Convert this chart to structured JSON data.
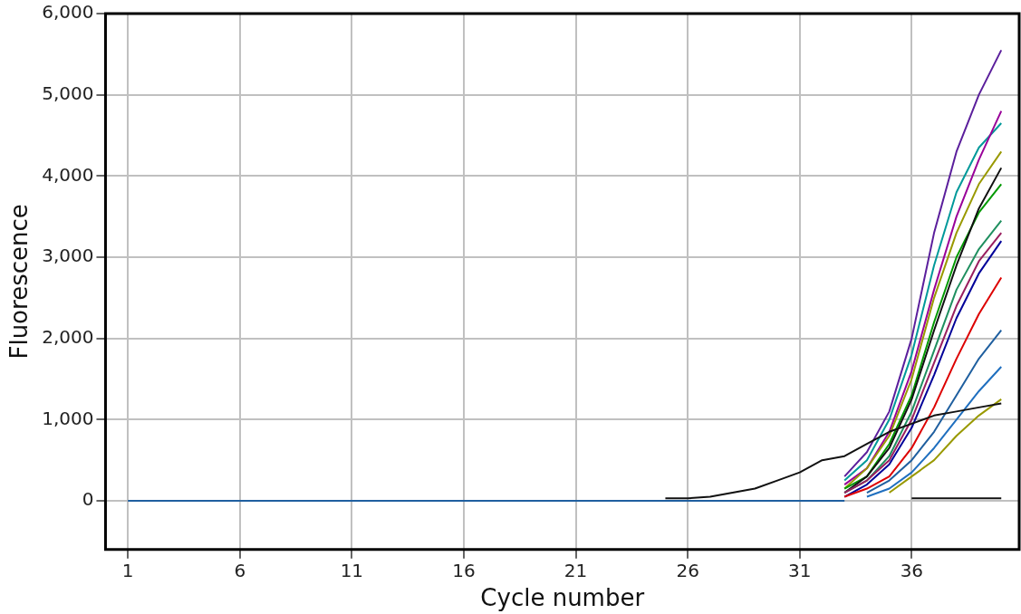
{
  "chart_data": {
    "type": "line",
    "xlabel": "Cycle number",
    "ylabel": "Fluorescence",
    "x": [
      33,
      34,
      35,
      36,
      37,
      38,
      39,
      40
    ],
    "xlim": [
      0,
      40.8
    ],
    "xticks": [
      1,
      6,
      11,
      16,
      21,
      26,
      31,
      36
    ],
    "ylim": [
      -600,
      6000
    ],
    "yticks": [
      {
        "value": 0,
        "label": "0"
      },
      {
        "value": 1000,
        "label": "1,000"
      },
      {
        "value": 2000,
        "label": "2,000"
      },
      {
        "value": 3000,
        "label": "3,000"
      },
      {
        "value": 4000,
        "label": "4,000"
      },
      {
        "value": 5000,
        "label": "5,000"
      },
      {
        "value": 6000,
        "label": "6,000"
      }
    ],
    "grid": true,
    "legend": false,
    "marker": "none",
    "line_style": "solid",
    "series": [
      {
        "color": "#1f5fa0",
        "x": [
          1,
          33
        ],
        "values": [
          0,
          0
        ]
      },
      {
        "color": "#111111",
        "x": [
          36,
          40
        ],
        "values": [
          30,
          30
        ]
      },
      {
        "color": "#111111",
        "x": [
          25,
          26,
          27,
          28,
          29,
          30,
          31,
          32,
          33,
          34,
          35,
          36,
          37,
          38,
          39,
          40
        ],
        "values": [
          30,
          30,
          50,
          100,
          150,
          250,
          350,
          500,
          550,
          700,
          850,
          950,
          1050,
          1100,
          1150,
          1200
        ]
      },
      {
        "color": "#999900",
        "x": [
          35,
          36,
          37,
          38,
          39,
          40
        ],
        "values": [
          100,
          300,
          500,
          800,
          1050,
          1250
        ]
      },
      {
        "color": "#1f6fbf",
        "x": [
          34,
          35,
          36,
          37,
          38,
          39,
          40
        ],
        "values": [
          50,
          150,
          350,
          650,
          1000,
          1350,
          1650
        ]
      },
      {
        "color": "#1f5f9f",
        "x": [
          34,
          35,
          36,
          37,
          38,
          39,
          40
        ],
        "values": [
          100,
          250,
          500,
          850,
          1300,
          1750,
          2100
        ]
      },
      {
        "color": "#dd0000",
        "values": [
          50,
          150,
          300,
          650,
          1150,
          1750,
          2300,
          2750
        ]
      },
      {
        "color": "#000099",
        "values": [
          50,
          200,
          450,
          900,
          1550,
          2250,
          2800,
          3200
        ]
      },
      {
        "color": "#991f5f",
        "values": [
          100,
          250,
          500,
          1000,
          1700,
          2400,
          2950,
          3300
        ]
      },
      {
        "color": "#1f8f5f",
        "values": [
          100,
          250,
          550,
          1100,
          1850,
          2600,
          3100,
          3450
        ]
      },
      {
        "color": "#111111",
        "values": [
          100,
          300,
          650,
          1250,
          2100,
          2900,
          3600,
          4100
        ]
      },
      {
        "color": "#009900",
        "values": [
          150,
          300,
          700,
          1300,
          2200,
          3000,
          3550,
          3900
        ]
      },
      {
        "color": "#999900",
        "values": [
          150,
          400,
          800,
          1500,
          2500,
          3300,
          3900,
          4300
        ]
      },
      {
        "color": "#990099",
        "values": [
          200,
          400,
          850,
          1600,
          2600,
          3500,
          4200,
          4800
        ]
      },
      {
        "color": "#00999a",
        "values": [
          250,
          500,
          1000,
          1800,
          2900,
          3800,
          4350,
          4650
        ]
      },
      {
        "color": "#5b1f9c",
        "values": [
          300,
          600,
          1100,
          2000,
          3300,
          4300,
          5000,
          5550
        ]
      }
    ]
  }
}
